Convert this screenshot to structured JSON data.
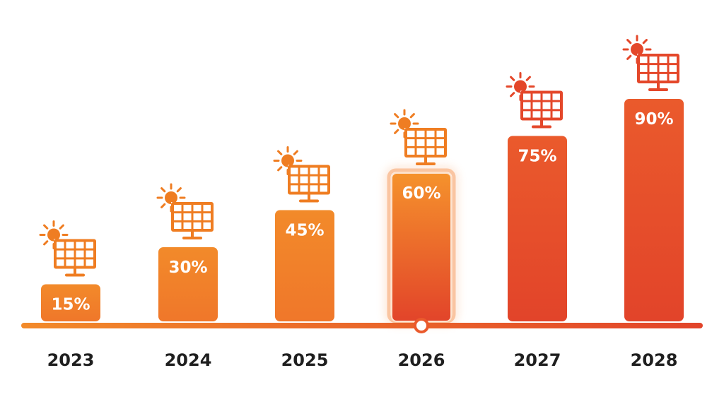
{
  "chart_data": {
    "type": "bar",
    "categories": [
      "2023",
      "2024",
      "2025",
      "2026",
      "2027",
      "2028"
    ],
    "values": [
      15,
      30,
      45,
      60,
      75,
      90
    ],
    "value_labels": [
      "15%",
      "30%",
      "45%",
      "60%",
      "75%",
      "90%"
    ],
    "highlighted_category": "2026",
    "ylim": [
      0,
      100
    ],
    "title": "",
    "xlabel": "",
    "ylabel": "",
    "grid": false,
    "legend": "none",
    "icon": "solar-panel-with-sun-icon",
    "colors": {
      "bar_top": "#f28a2a",
      "bar_bottom": "#f0772a",
      "bar_highlight_top": "#f5922c",
      "bar_highlight_bottom": "#e2442a",
      "bar_late_top": "#ea5a2c",
      "bar_late_bottom": "#e2442a",
      "icon_orange": "#ef7d22",
      "icon_red": "#e4472a",
      "axis_left": "#f28a2a",
      "axis_right": "#e2442a"
    }
  }
}
